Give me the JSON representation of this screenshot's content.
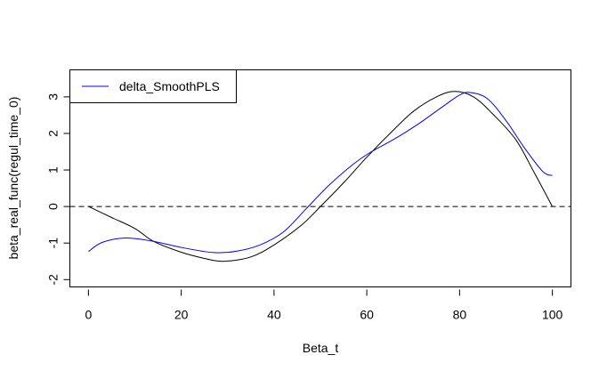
{
  "chart_data": {
    "type": "line",
    "title": "",
    "xlabel": "Beta_t",
    "ylabel": "beta_real_func(regul_time_0)",
    "xlim": [
      -4,
      104
    ],
    "ylim": [
      -2.2,
      3.74
    ],
    "x_ticks": [
      0,
      20,
      40,
      60,
      80,
      100
    ],
    "y_ticks": [
      -2,
      -1,
      0,
      1,
      2,
      3
    ],
    "grid": false,
    "reference_line": {
      "y": 0,
      "style": "dashed",
      "color": "#000000"
    },
    "legend": {
      "position": "topleft",
      "entries": [
        {
          "label": "delta_SmoothPLS",
          "color": "#0000ff"
        }
      ]
    },
    "series": [
      {
        "name": "beta_real_func",
        "color": "#000000",
        "in_legend": false,
        "x": [
          0,
          5,
          10,
          14,
          20,
          25,
          29,
          35,
          40,
          46,
          50,
          55,
          60,
          65,
          70,
          75,
          79,
          83,
          87,
          92,
          96,
          100
        ],
        "y": [
          0,
          -0.3,
          -0.6,
          -0.95,
          -1.25,
          -1.42,
          -1.5,
          -1.38,
          -1.05,
          -0.5,
          0.0,
          0.65,
          1.35,
          2.0,
          2.6,
          3.0,
          3.15,
          3.0,
          2.55,
          1.85,
          0.95,
          0.0
        ]
      },
      {
        "name": "delta_SmoothPLS",
        "color": "#0000ff",
        "in_legend": true,
        "x": [
          0,
          3,
          8,
          14,
          20,
          27,
          32,
          37,
          42,
          47,
          52,
          57,
          61,
          66,
          71,
          76,
          80,
          82.3,
          86,
          90,
          94,
          98,
          100
        ],
        "y": [
          -1.23,
          -0.98,
          -0.86,
          -0.95,
          -1.12,
          -1.26,
          -1.22,
          -1.05,
          -0.7,
          -0.05,
          0.6,
          1.15,
          1.5,
          1.85,
          2.25,
          2.7,
          3.05,
          3.12,
          2.95,
          2.35,
          1.6,
          0.95,
          0.85
        ]
      }
    ]
  }
}
